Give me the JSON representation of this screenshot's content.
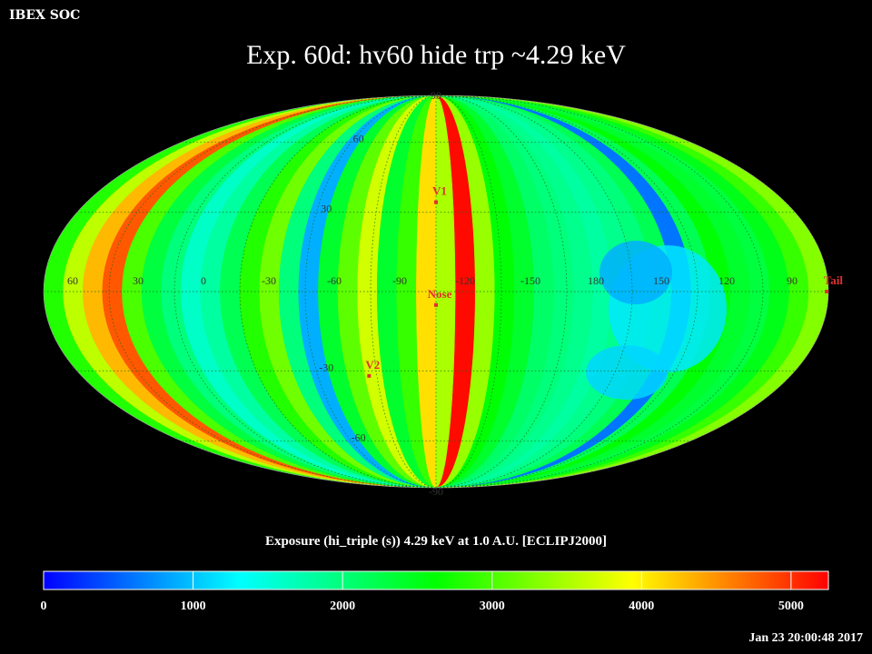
{
  "header": {
    "org_label": "IBEX SOC",
    "title": "Exp.   60d: hv60 hide trp ~4.29 keV"
  },
  "footer": {
    "colorbar_title": "Exposure (hi_triple (s))  4.29 keV at 1.0 A.U. [ECLIPJ2000]",
    "timestamp": "Jan 23 20:00:48 2017"
  },
  "map": {
    "projection": "mollweide",
    "longitude_labels": [
      {
        "text": "60",
        "lon": 60
      },
      {
        "text": "30",
        "lon": 30
      },
      {
        "text": "0",
        "lon": 0
      },
      {
        "text": "-30",
        "lon": -30
      },
      {
        "text": "-60",
        "lon": -60
      },
      {
        "text": "-90",
        "lon": -90
      },
      {
        "text": "-120",
        "lon": -120
      },
      {
        "text": "-150",
        "lon": -150
      },
      {
        "text": "180",
        "lon": 180
      },
      {
        "text": "150",
        "lon": 150
      },
      {
        "text": "120",
        "lon": 120
      },
      {
        "text": "90",
        "lon": 90
      }
    ],
    "latitude_labels": [
      {
        "text": "90",
        "lat": 90
      },
      {
        "text": "60",
        "lat": 60
      },
      {
        "text": "30",
        "lat": 30
      },
      {
        "text": "-30",
        "lat": -30
      },
      {
        "text": "-60",
        "lat": -60
      },
      {
        "text": "-90",
        "lat": -90
      }
    ],
    "markers": [
      {
        "label": "V1",
        "lon": 255,
        "lat": 34
      },
      {
        "label": "Nose",
        "lon": 255,
        "lat": -5
      },
      {
        "label": "V2",
        "lon": 289,
        "lat": -32
      },
      {
        "label": "Tail",
        "lon": 75,
        "lat": 0
      }
    ],
    "marker_color": "#e03030",
    "grid_color": "#1a6a1a",
    "background": "#000000"
  },
  "colorbar": {
    "min": 0,
    "max": 5250,
    "ticks": [
      {
        "value": 0,
        "label": "0"
      },
      {
        "value": 1000,
        "label": "1000"
      },
      {
        "value": 2000,
        "label": "2000"
      },
      {
        "value": 3000,
        "label": "3000"
      },
      {
        "value": 4000,
        "label": "4000"
      },
      {
        "value": 5000,
        "label": "5000"
      }
    ],
    "colors": [
      "#0000ff",
      "#0080ff",
      "#00ffff",
      "#00ff80",
      "#00ff00",
      "#80ff00",
      "#ffff00",
      "#ff8000",
      "#ff0000"
    ]
  }
}
